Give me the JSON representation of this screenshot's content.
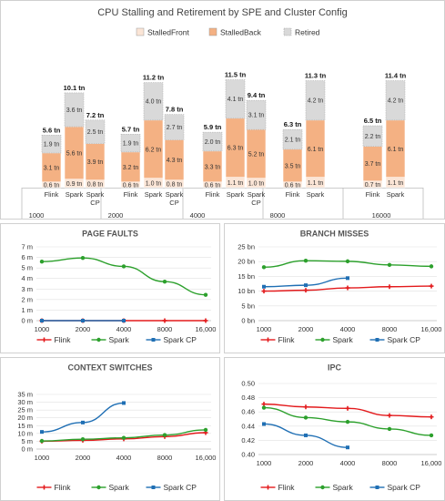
{
  "colors": {
    "stalled_front": "#fbe5d6",
    "stalled_back": "#f4b183",
    "retired": "#d9d9d9",
    "flink": "#e31a1c",
    "spark": "#2ca02c",
    "spark_cp": "#1f6fb4"
  },
  "chart_data": [
    {
      "type": "bar",
      "stacked": true,
      "title": "CPU Stalling and Retirement by SPE and Cluster Config",
      "legend": [
        "StalledFront",
        "StalledBack",
        "Retired"
      ],
      "legend_position": "top",
      "groups": [
        "1000",
        "2000",
        "4000",
        "8000",
        "16000"
      ],
      "subcategories": [
        "Flink",
        "Spark",
        "Spark CP"
      ],
      "bars": [
        {
          "group": "1000",
          "engine": "Flink",
          "stalled_front": 0.6,
          "stalled_back": 3.1,
          "retired": 1.9,
          "total": "5.6 tn",
          "labels": [
            "0.6 tn",
            "3.1 tn",
            "1.9 tn"
          ]
        },
        {
          "group": "1000",
          "engine": "Spark",
          "stalled_front": 0.9,
          "stalled_back": 5.6,
          "retired": 3.6,
          "total": "10.1 tn",
          "labels": [
            "0.9 tn",
            "5.6 tn",
            "3.6 tn"
          ]
        },
        {
          "group": "1000",
          "engine": "Spark CP",
          "stalled_front": 0.8,
          "stalled_back": 3.9,
          "retired": 2.5,
          "total": "7.2 tn",
          "labels": [
            "0.8 tn",
            "3.9 tn",
            "2.5 tn"
          ]
        },
        {
          "group": "2000",
          "engine": "Flink",
          "stalled_front": 0.6,
          "stalled_back": 3.2,
          "retired": 1.9,
          "total": "5.7 tn",
          "labels": [
            "0.6 tn",
            "3.2 tn",
            "1.9 tn"
          ]
        },
        {
          "group": "2000",
          "engine": "Spark",
          "stalled_front": 1.0,
          "stalled_back": 6.2,
          "retired": 4.0,
          "total": "11.2 tn",
          "labels": [
            "1.0 tn",
            "6.2 tn",
            "4.0 tn"
          ]
        },
        {
          "group": "2000",
          "engine": "Spark CP",
          "stalled_front": 0.8,
          "stalled_back": 4.3,
          "retired": 2.7,
          "total": "7.8 tn",
          "labels": [
            "0.8 tn",
            "4.3 tn",
            "2.7 tn"
          ]
        },
        {
          "group": "4000",
          "engine": "Flink",
          "stalled_front": 0.6,
          "stalled_back": 3.3,
          "retired": 2.0,
          "total": "5.9 tn",
          "labels": [
            "0.6 tn",
            "3.3 tn",
            "2.0 tn"
          ]
        },
        {
          "group": "4000",
          "engine": "Spark",
          "stalled_front": 1.1,
          "stalled_back": 6.3,
          "retired": 4.1,
          "total": "11.5 tn",
          "labels": [
            "1.1 tn",
            "6.3 tn",
            "4.1 tn"
          ]
        },
        {
          "group": "4000",
          "engine": "Spark CP",
          "stalled_front": 1.0,
          "stalled_back": 5.2,
          "retired": 3.1,
          "total": "9.4 tn",
          "labels": [
            "1.0 tn",
            "5.2 tn",
            "3.1 tn"
          ]
        },
        {
          "group": "8000",
          "engine": "Flink",
          "stalled_front": 0.6,
          "stalled_back": 3.5,
          "retired": 2.1,
          "total": "6.3 tn",
          "labels": [
            "0.6 tn",
            "3.5 tn",
            "2.1 tn"
          ]
        },
        {
          "group": "8000",
          "engine": "Spark",
          "stalled_front": 1.1,
          "stalled_back": 6.1,
          "retired": 4.2,
          "total": "11.3 tn",
          "labels": [
            "1.1 tn",
            "6.1 tn",
            "4.2 tn"
          ]
        },
        {
          "group": "16000",
          "engine": "Flink",
          "stalled_front": 0.7,
          "stalled_back": 3.7,
          "retired": 2.2,
          "total": "6.5 tn",
          "labels": [
            "0.7 tn",
            "3.7 tn",
            "2.2 tn"
          ]
        },
        {
          "group": "16000",
          "engine": "Spark",
          "stalled_front": 1.1,
          "stalled_back": 6.1,
          "retired": 4.2,
          "total": "11.4 tn",
          "labels": [
            "1.1 tn",
            "6.1 tn",
            "4.2 tn"
          ]
        }
      ]
    },
    {
      "type": "line",
      "title": "PAGE FAULTS",
      "categories": [
        "1000",
        "2000",
        "4000",
        "8000",
        "16,000"
      ],
      "ylim": [
        0,
        7000000
      ],
      "yticks": [
        0,
        1000000,
        2000000,
        3000000,
        4000000,
        5000000,
        6000000,
        7000000
      ],
      "ytick_labels": [
        "0 m",
        "1 m",
        "2 m",
        "3 m",
        "4 m",
        "5 m",
        "6 m",
        "7 m"
      ],
      "series": [
        {
          "name": "Flink",
          "values": [
            0,
            0,
            0,
            0,
            0
          ]
        },
        {
          "name": "Spark",
          "values": [
            5600000,
            5950000,
            5150000,
            3700000,
            2450000
          ]
        },
        {
          "name": "Spark CP",
          "values": [
            0,
            0,
            0,
            null,
            null
          ]
        }
      ],
      "grid": true,
      "legend_position": "bottom"
    },
    {
      "type": "line",
      "title": "BRANCH MISSES",
      "categories": [
        "1000",
        "2000",
        "4000",
        "8000",
        "16,000"
      ],
      "ylim": [
        0,
        25
      ],
      "yticks": [
        0,
        5,
        10,
        15,
        20,
        25
      ],
      "ytick_labels": [
        "0 bn",
        "5 bn",
        "10 bn",
        "15 bn",
        "20 bn",
        "25 bn"
      ],
      "series": [
        {
          "name": "Flink",
          "values": [
            10.0,
            10.3,
            11.1,
            11.5,
            11.7
          ]
        },
        {
          "name": "Spark",
          "values": [
            18.1,
            20.3,
            20.1,
            18.9,
            18.4
          ]
        },
        {
          "name": "Spark CP",
          "values": [
            11.5,
            12.0,
            14.4,
            null,
            null
          ]
        }
      ],
      "grid": true,
      "legend_position": "bottom"
    },
    {
      "type": "line",
      "title": "CONTEXT SWITCHES",
      "categories": [
        "1000",
        "2000",
        "4000",
        "8000",
        "16,000"
      ],
      "ylim": [
        0,
        35
      ],
      "yticks": [
        0,
        5,
        10,
        15,
        20,
        25,
        30,
        35
      ],
      "ytick_labels": [
        "0 m",
        "5 m",
        "10 m",
        "15 m",
        "20 m",
        "25 m",
        "30 m",
        "35 m"
      ],
      "series": [
        {
          "name": "Flink",
          "values": [
            5.0,
            5.6,
            6.5,
            8.0,
            10.5
          ]
        },
        {
          "name": "Spark",
          "values": [
            5.2,
            6.3,
            7.2,
            9.0,
            12.3
          ]
        },
        {
          "name": "Spark CP",
          "values": [
            11.0,
            17.0,
            29.5,
            null,
            null
          ]
        }
      ],
      "grid": true,
      "legend_position": "bottom"
    },
    {
      "type": "line",
      "title": "IPC",
      "categories": [
        "1000",
        "2000",
        "4000",
        "8000",
        "16,000"
      ],
      "ylim": [
        0.4,
        0.5
      ],
      "yticks": [
        0.4,
        0.42,
        0.44,
        0.46,
        0.48,
        0.5
      ],
      "ytick_labels": [
        "0.40",
        "0.42",
        "0.44",
        "0.46",
        "0.48",
        "0.50"
      ],
      "series": [
        {
          "name": "Flink",
          "values": [
            0.471,
            0.467,
            0.465,
            0.455,
            0.453
          ]
        },
        {
          "name": "Spark",
          "values": [
            0.466,
            0.452,
            0.446,
            0.436,
            0.427
          ]
        },
        {
          "name": "Spark CP",
          "values": [
            0.443,
            0.427,
            0.41,
            null,
            null
          ]
        }
      ],
      "grid": true,
      "legend_position": "bottom"
    }
  ]
}
